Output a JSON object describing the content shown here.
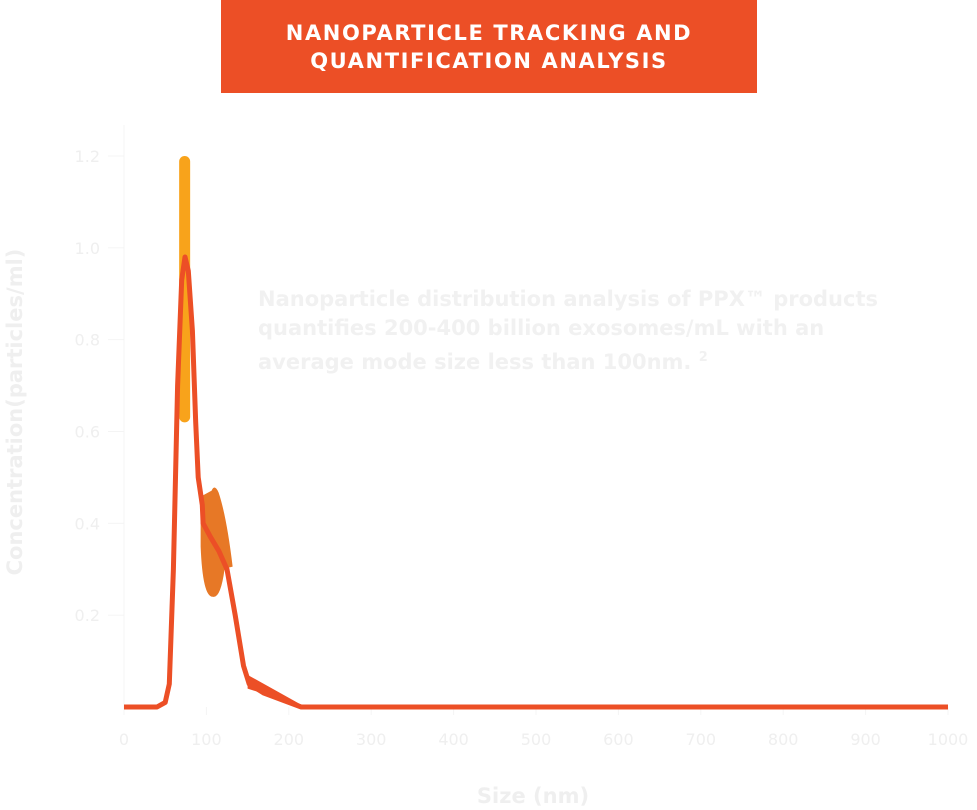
{
  "title": {
    "line1": "NANOPARTICLE TRACKING AND",
    "line2": "QUANTIFICATION ANALYSIS"
  },
  "note": {
    "text": "Nanoparticle distribution analysis of PPX™ products quantifies 200-400 billion exosomes/mL with an average mode size less than 100nm.",
    "superscript": "2"
  },
  "chart_data": {
    "type": "line",
    "title": "NANOPARTICLE TRACKING AND QUANTIFICATION ANALYSIS",
    "xlabel": "Size (nm)",
    "ylabel": "Concentration(particles/ml)",
    "xlim": [
      0,
      1000
    ],
    "ylim": [
      0,
      1.2
    ],
    "xticks": [
      "0",
      "100",
      "200",
      "300",
      "400",
      "500",
      "600",
      "700",
      "800",
      "900",
      "1000"
    ],
    "yticks": [
      "0.2",
      "0.4",
      "0.6",
      "0.8",
      "1.0",
      "1.2"
    ],
    "grid": false,
    "series": [
      {
        "color": "#ec4f26",
        "x": [
          0,
          40,
          50,
          55,
          60,
          65,
          70,
          74,
          78,
          83,
          87,
          90,
          95,
          96,
          105,
          115,
          125,
          135,
          145,
          152,
          170,
          200,
          215,
          1000
        ],
        "y": [
          0,
          0,
          0.01,
          0.05,
          0.3,
          0.7,
          0.93,
          0.98,
          0.95,
          0.82,
          0.62,
          0.5,
          0.44,
          0.4,
          0.37,
          0.34,
          0.3,
          0.2,
          0.09,
          0.05,
          0.03,
          0.01,
          0,
          0
        ]
      }
    ],
    "error_regions": [
      {
        "color": "#f8a31b",
        "x_center": 73,
        "y_range": [
          0.62,
          1.2
        ]
      },
      {
        "color": "#e77826",
        "x_center": 110,
        "y_range": [
          0.24,
          0.48
        ]
      },
      {
        "color": "#ec4f26",
        "x_range": [
          150,
          220
        ],
        "y_range": [
          0,
          0.07
        ]
      }
    ]
  }
}
